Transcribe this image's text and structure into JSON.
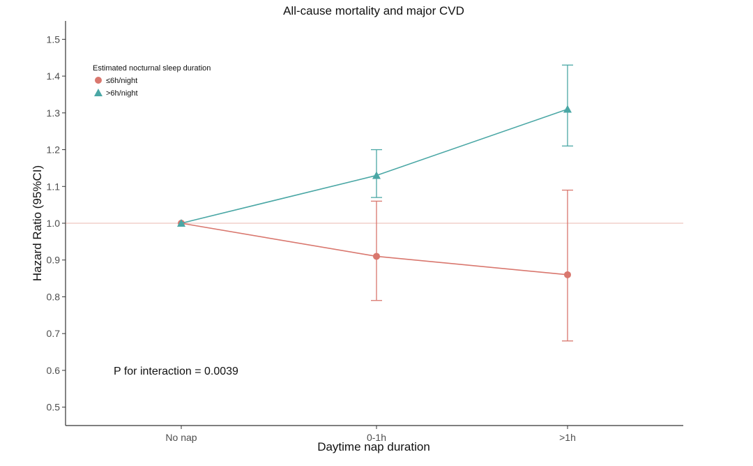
{
  "chart_data": {
    "type": "line",
    "title": "All-cause mortality and major CVD",
    "xlabel": "Daytime nap duration",
    "ylabel": "Hazard Ratio (95%CI)",
    "categories": [
      "No nap",
      "0-1h",
      ">1h"
    ],
    "ylim": [
      0.45,
      1.55
    ],
    "yticks": [
      0.5,
      0.6,
      0.7,
      0.8,
      0.9,
      1.0,
      1.1,
      1.2,
      1.3,
      1.4,
      1.5
    ],
    "ytick_labels": [
      "0.5",
      "0.6",
      "0.7",
      "0.8",
      "0.9",
      "1.0",
      "1.1",
      "1.2",
      "1.3",
      "1.4",
      "1.5"
    ],
    "reference_line": 1.0,
    "grid": false,
    "legend": {
      "title": "Estimated nocturnal sleep duration",
      "position": "top-left"
    },
    "series": [
      {
        "name": "≤6h/night",
        "color": "#d9776e",
        "marker": "circle",
        "values": [
          1.0,
          0.91,
          0.86
        ],
        "ci_lower": [
          null,
          0.79,
          0.68
        ],
        "ci_upper": [
          null,
          1.06,
          1.09
        ]
      },
      {
        "name": ">6h/night",
        "color": "#4aa7a5",
        "marker": "triangle",
        "values": [
          1.0,
          1.13,
          1.31
        ],
        "ci_lower": [
          null,
          1.07,
          1.21
        ],
        "ci_upper": [
          null,
          1.2,
          1.43
        ]
      }
    ],
    "annotations": [
      "P for interaction = 0.0039"
    ]
  }
}
